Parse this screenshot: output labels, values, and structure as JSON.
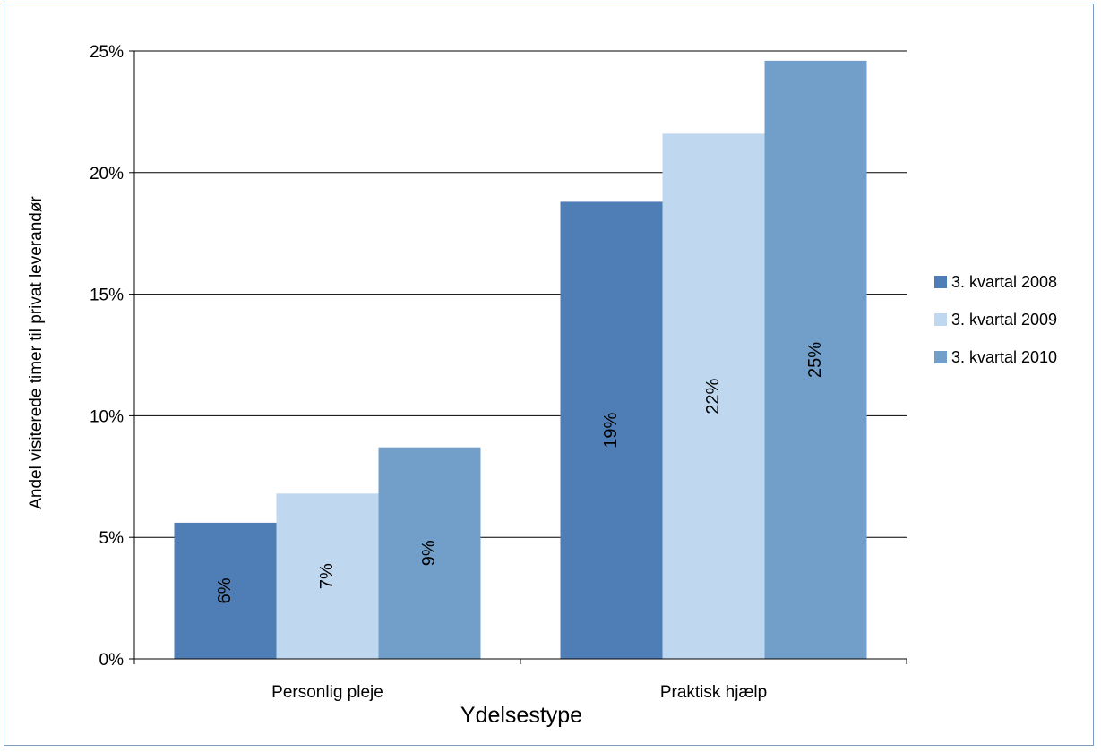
{
  "chart_data": {
    "type": "bar",
    "title": "",
    "xlabel": "Ydelsestype",
    "ylabel": "Andel visiterede timer til privat leverandør",
    "categories": [
      "Personlig pleje",
      "Praktisk hjælp"
    ],
    "series": [
      {
        "name": "3. kvartal 2008",
        "color": "#4f7db5",
        "values": [
          5.6,
          18.8
        ],
        "labels": [
          "6%",
          "19%"
        ]
      },
      {
        "name": "3. kvartal 2009",
        "color": "#bfd7ef",
        "values": [
          6.8,
          21.6
        ],
        "labels": [
          "7%",
          "22%"
        ]
      },
      {
        "name": "3. kvartal 2010",
        "color": "#729fc9",
        "values": [
          8.7,
          24.6
        ],
        "labels": [
          "9%",
          "25%"
        ]
      }
    ],
    "ylim": [
      0,
      25
    ],
    "yticks": [
      "0%",
      "5%",
      "10%",
      "15%",
      "20%",
      "25%"
    ],
    "ytick_values": [
      0,
      5,
      10,
      15,
      20,
      25
    ],
    "grid": true,
    "legend_position": "right"
  }
}
